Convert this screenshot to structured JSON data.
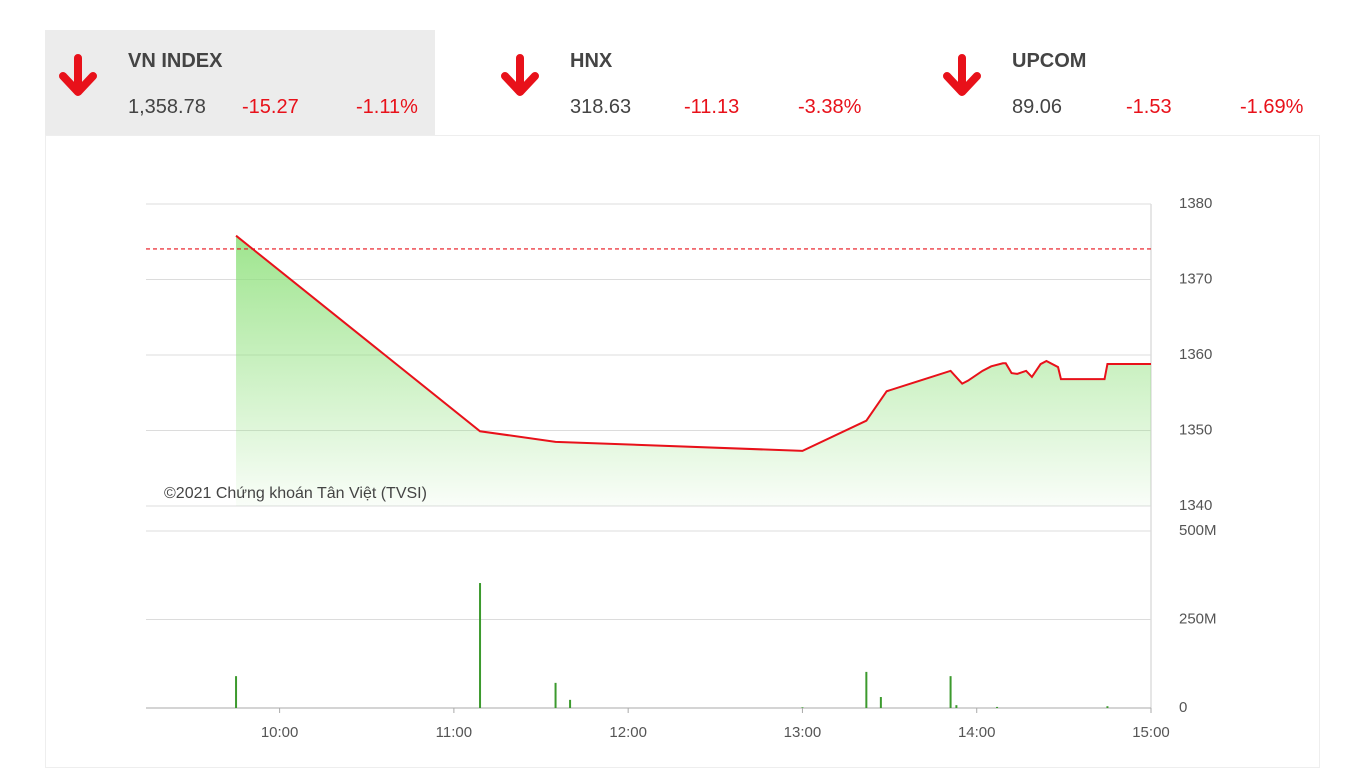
{
  "indices": [
    {
      "name": "VN INDEX",
      "value": "1,358.78",
      "change": "-15.27",
      "percent": "-1.11%"
    },
    {
      "name": "HNX",
      "value": "318.63",
      "change": "-11.13",
      "percent": "-3.38%"
    },
    {
      "name": "UPCOM",
      "value": "89.06",
      "change": "-1.53",
      "percent": "-1.69%"
    }
  ],
  "chart_data": [
    {
      "type": "line",
      "watermark": "©2021 Chứng khoán Tân Việt (TVSI)",
      "color": "#e8111a",
      "fill_color": "#8de07a",
      "reference_line": 1374.05,
      "reference_color": "#e8111a",
      "x": [
        "09:45",
        "11:09",
        "11:35",
        "13:00",
        "13:22",
        "13:29",
        "13:51",
        "13:55",
        "13:57",
        "14:02",
        "14:05",
        "14:09",
        "14:10",
        "14:12",
        "14:14",
        "14:17",
        "14:19",
        "14:22",
        "14:24",
        "14:28",
        "14:29",
        "14:44",
        "14:45",
        "15:00"
      ],
      "values": [
        1375.8,
        1349.9,
        1348.5,
        1347.3,
        1351.3,
        1355.2,
        1357.9,
        1356.2,
        1356.6,
        1357.9,
        1358.5,
        1358.9,
        1358.9,
        1357.6,
        1357.5,
        1357.9,
        1357.1,
        1358.8,
        1359.2,
        1358.4,
        1356.8,
        1356.8,
        1358.8,
        1358.8
      ],
      "xlim": [
        "09:14",
        "15:00"
      ],
      "ylim": [
        1340,
        1380
      ],
      "yticks": [
        1340,
        1350,
        1360,
        1370,
        1380
      ],
      "grid": true
    },
    {
      "type": "bar",
      "color": "#3c9a2e",
      "x": [
        "09:45",
        "11:09",
        "11:35",
        "11:40",
        "13:00",
        "13:22",
        "13:27",
        "13:51",
        "13:53",
        "14:07",
        "14:45"
      ],
      "values": [
        90000000,
        353000000,
        71000000,
        23000000,
        2000000,
        102000000,
        31000000,
        90000000,
        8000000,
        3000000,
        5000000
      ],
      "xlim": [
        "09:14",
        "15:00"
      ],
      "ylim": [
        0,
        500000000
      ],
      "yticks": [
        0,
        {
          "value": 250000000,
          "label": "250M"
        },
        {
          "value": 500000000,
          "label": "500M"
        }
      ],
      "xticks": [
        "10:00",
        "11:00",
        "12:00",
        "13:00",
        "14:00",
        "15:00"
      ],
      "grid": true
    }
  ]
}
